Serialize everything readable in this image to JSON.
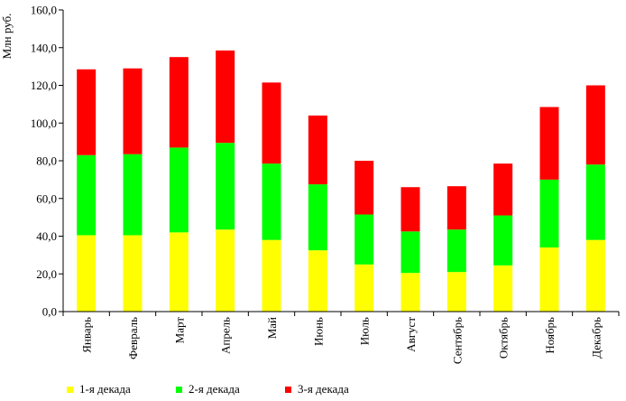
{
  "chart_data": {
    "type": "bar",
    "stacked": true,
    "ylabel": "Млн руб.",
    "ylim": [
      0,
      160
    ],
    "ytick_step": 20,
    "ytick_labels": [
      "0,0",
      "20,0",
      "40,0",
      "60,0",
      "80,0",
      "100,0",
      "120,0",
      "140,0",
      "160,0"
    ],
    "grid": false,
    "legend_position": "bottom",
    "categories": [
      "Январь",
      "Февраль",
      "Март",
      "Апрель",
      "Май",
      "Июнь",
      "Июль",
      "Август",
      "Сентябрь",
      "Октябрь",
      "Ноябрь",
      "Декабрь"
    ],
    "series": [
      {
        "name": "1-я декада",
        "color": "#ffff00",
        "values": [
          40.5,
          40.5,
          42.0,
          43.5,
          38.0,
          32.5,
          25.0,
          20.5,
          21.0,
          24.5,
          34.0,
          38.0
        ]
      },
      {
        "name": "2-я декада",
        "color": "#00ff00",
        "values": [
          42.5,
          43.0,
          45.0,
          46.0,
          40.5,
          35.0,
          26.5,
          22.0,
          22.5,
          26.5,
          36.0,
          40.0
        ]
      },
      {
        "name": "3-я декада",
        "color": "#ff0000",
        "values": [
          45.5,
          45.5,
          48.0,
          49.0,
          43.0,
          36.5,
          28.5,
          23.5,
          23.0,
          27.5,
          38.5,
          42.0
        ]
      }
    ]
  }
}
